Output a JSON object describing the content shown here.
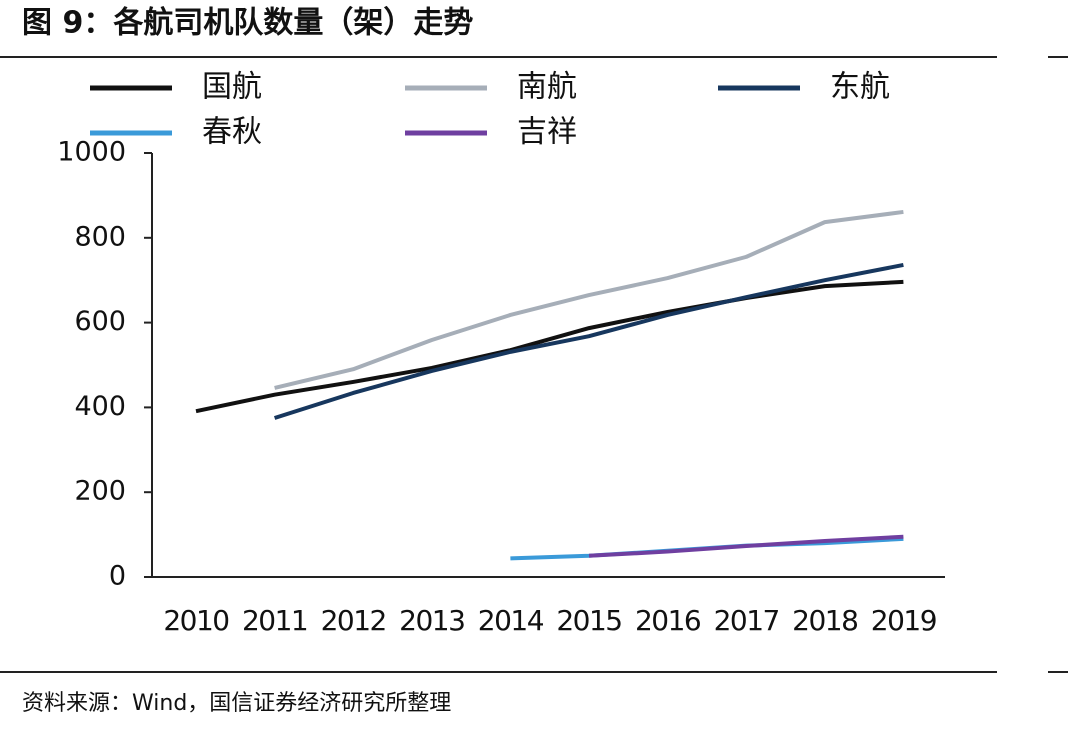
{
  "chart_data": {
    "type": "line",
    "title": "图 9：各航司机队数量（架）走势",
    "source": "资料来源：Wind，国信证券经济研究所整理",
    "categories": [
      "2010",
      "2011",
      "2012",
      "2013",
      "2014",
      "2015",
      "2016",
      "2017",
      "2018",
      "2019"
    ],
    "series": [
      {
        "name": "国航",
        "color": "#111111",
        "values": [
          391,
          430,
          460,
          493,
          535,
          587,
          625,
          658,
          686,
          696
        ]
      },
      {
        "name": "南航",
        "color": "#a6aeb8",
        "values": [
          null,
          446,
          490,
          559,
          618,
          665,
          705,
          755,
          837,
          861
        ]
      },
      {
        "name": "东航",
        "color": "#17375e",
        "values": [
          null,
          375,
          434,
          486,
          531,
          568,
          618,
          660,
          700,
          736
        ]
      },
      {
        "name": "春秋",
        "color": "#3a9ad9",
        "values": [
          null,
          null,
          null,
          null,
          44,
          50,
          62,
          74,
          80,
          90
        ]
      },
      {
        "name": "吉祥",
        "color": "#6f3fa0",
        "values": [
          null,
          null,
          null,
          null,
          null,
          50,
          60,
          73,
          85,
          95
        ]
      }
    ],
    "ylim": [
      0,
      1000
    ],
    "yticks": [
      0,
      200,
      400,
      600,
      800,
      1000
    ]
  }
}
